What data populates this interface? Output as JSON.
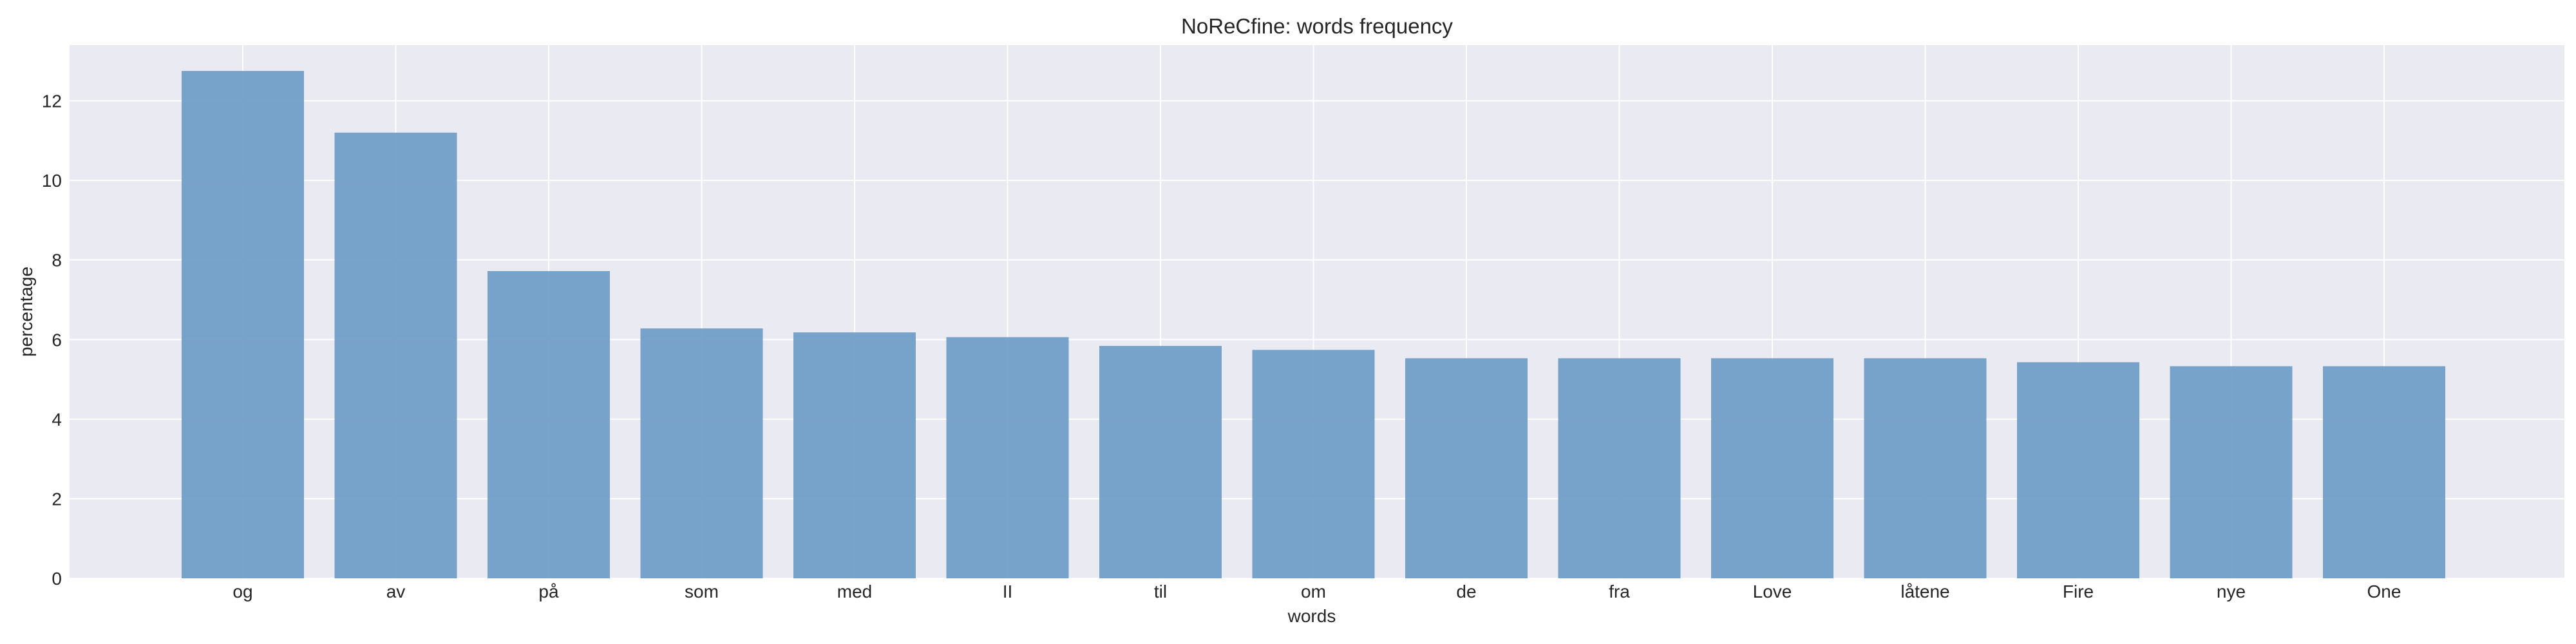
{
  "colors": {
    "plot_background": "#eaeaf2",
    "grid": "#ffffff",
    "bar": "#6a9ac4",
    "text": "#262626"
  },
  "chart_data": {
    "type": "bar",
    "title": "NoReCfine: words frequency",
    "xlabel": "words",
    "ylabel": "percentage",
    "categories": [
      "og",
      "av",
      "på",
      "som",
      "med",
      "II",
      "til",
      "om",
      "de",
      "fra",
      "Love",
      "låtene",
      "Fire",
      "nye",
      "One"
    ],
    "values": [
      12.75,
      11.2,
      7.72,
      6.28,
      6.18,
      6.06,
      5.84,
      5.74,
      5.53,
      5.53,
      5.53,
      5.53,
      5.43,
      5.33,
      5.33
    ],
    "ylim": [
      0,
      13.4
    ],
    "yticks": [
      0,
      2,
      4,
      6,
      8,
      10,
      12
    ],
    "grid": true,
    "legend": "none"
  }
}
